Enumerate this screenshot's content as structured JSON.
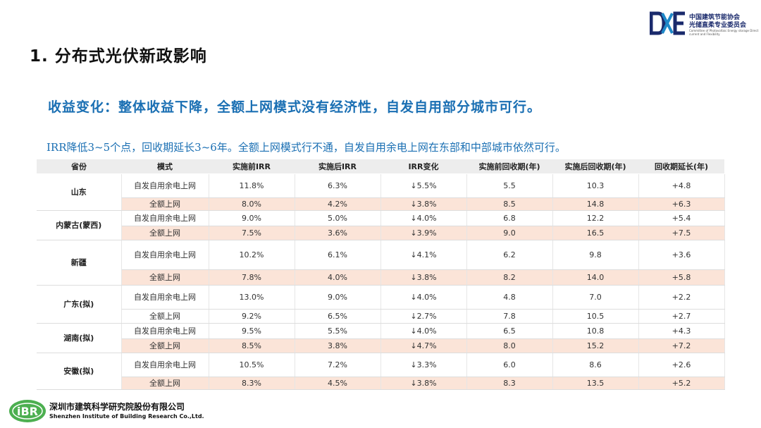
{
  "page": {
    "title": "1.  分布式光伏新政影响",
    "subtitle": "收益变化：整体收益下降，全额上网模式没有经济性，自发自用部分城市可行。",
    "summary": "IRR降低3~5个点，回收期延长3~6年。全额上网模式行不通，自发自用余电上网在东部和中部城市依然可行。"
  },
  "org_top": {
    "line1": "中国建筑节能协会",
    "line2": "光储直柔专业委员会",
    "line3": "Committee of Photovoltaic Energy storage Direct current and Flexibility"
  },
  "org_bottom": {
    "name_cn": "深圳市建筑科学研究院股份有限公司",
    "name_en": "Shenzhen Institute of Building Research Co.,Ltd."
  },
  "colors": {
    "accent_blue": "#1a6fb3",
    "highlight_row": "#fbe4d8",
    "header_bg": "#ededed"
  },
  "table": {
    "headers": [
      "省份",
      "模式",
      "实施前IRR",
      "实施后IRR",
      "IRR变化",
      "实施前回收期(年)",
      "实施后回收期(年)",
      "回收期延长(年)"
    ],
    "groups": [
      {
        "province": "山东",
        "rows": [
          {
            "mode": "自发自用余电上网",
            "irr_before": "11.8%",
            "irr_after": "6.3%",
            "irr_change": "↓5.5%",
            "payback_before": "5.5",
            "payback_after": "10.3",
            "payback_ext": "+4.8"
          },
          {
            "mode": "全额上网",
            "irr_before": "8.0%",
            "irr_after": "4.2%",
            "irr_change": "↓3.8%",
            "payback_before": "8.5",
            "payback_after": "14.8",
            "payback_ext": "+6.3"
          }
        ]
      },
      {
        "province": "内蒙古(蒙西)",
        "rows": [
          {
            "mode": "自发自用余电上网",
            "irr_before": "9.0%",
            "irr_after": "5.0%",
            "irr_change": "↓4.0%",
            "payback_before": "6.8",
            "payback_after": "12.2",
            "payback_ext": "+5.4"
          },
          {
            "mode": "全额上网",
            "irr_before": "7.5%",
            "irr_after": "3.6%",
            "irr_change": "↓3.9%",
            "payback_before": "9.0",
            "payback_after": "16.5",
            "payback_ext": "+7.5"
          }
        ]
      },
      {
        "province": "新疆",
        "rows": [
          {
            "mode": "自发自用余电上网",
            "irr_before": "10.2%",
            "irr_after": "6.1%",
            "irr_change": "↓4.1%",
            "payback_before": "6.2",
            "payback_after": "9.8",
            "payback_ext": "+3.6"
          },
          {
            "mode": "全额上网",
            "irr_before": "7.8%",
            "irr_after": "4.0%",
            "irr_change": "↓3.8%",
            "payback_before": "8.2",
            "payback_after": "14.0",
            "payback_ext": "+5.8"
          }
        ]
      },
      {
        "province": "广东(拟)",
        "rows": [
          {
            "mode": "自发自用余电上网",
            "irr_before": "13.0%",
            "irr_after": "9.0%",
            "irr_change": "↓4.0%",
            "payback_before": "4.8",
            "payback_after": "7.0",
            "payback_ext": "+2.2"
          },
          {
            "mode": "全额上网",
            "irr_before": "9.2%",
            "irr_after": "6.5%",
            "irr_change": "↓2.7%",
            "payback_before": "7.8",
            "payback_after": "10.5",
            "payback_ext": "+2.7"
          }
        ]
      },
      {
        "province": "湖南(拟)",
        "rows": [
          {
            "mode": "自发自用余电上网",
            "irr_before": "9.5%",
            "irr_after": "5.5%",
            "irr_change": "↓4.0%",
            "payback_before": "6.5",
            "payback_after": "10.8",
            "payback_ext": "+4.3"
          },
          {
            "mode": "全额上网",
            "irr_before": "8.5%",
            "irr_after": "3.8%",
            "irr_change": "↓4.7%",
            "payback_before": "8.0",
            "payback_after": "15.2",
            "payback_ext": "+7.2"
          }
        ]
      },
      {
        "province": "安徽(拟)",
        "rows": [
          {
            "mode": "自发自用余电上网",
            "irr_before": "10.5%",
            "irr_after": "7.2%",
            "irr_change": "↓3.3%",
            "payback_before": "6.0",
            "payback_after": "8.6",
            "payback_ext": "+2.6"
          },
          {
            "mode": "全额上网",
            "irr_before": "8.3%",
            "irr_after": "4.5%",
            "irr_change": "↓3.8%",
            "payback_before": "8.3",
            "payback_after": "13.5",
            "payback_ext": "+5.2"
          }
        ]
      }
    ]
  }
}
